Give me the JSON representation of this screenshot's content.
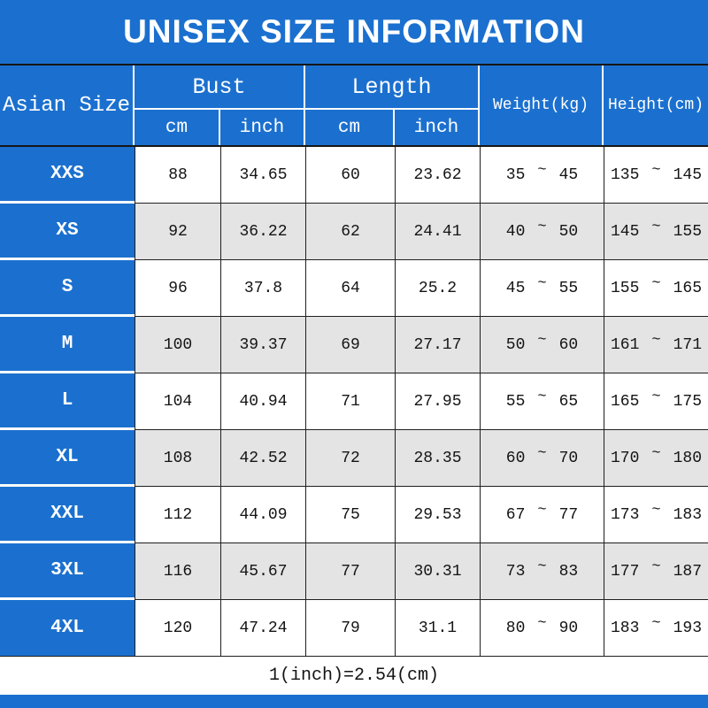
{
  "title": "UNISEX SIZE INFORMATION",
  "colors": {
    "blue": "#1b70cf",
    "stripe_gray": "#e4e4e4",
    "line": "#1f1f1f"
  },
  "table": {
    "headers": {
      "size": "Asian Size",
      "bust": "Bust",
      "length": "Length",
      "weight": "Weight(kg)",
      "height": "Height(cm)",
      "cm": "cm",
      "inch": "inch"
    },
    "tilde": "~",
    "rows": [
      {
        "size": "XXS",
        "bust_cm": "88",
        "bust_inch": "34.65",
        "length_cm": "60",
        "length_inch": "23.62",
        "weight_min": "35",
        "weight_max": "45",
        "height_min": "135",
        "height_max": "145"
      },
      {
        "size": "XS",
        "bust_cm": "92",
        "bust_inch": "36.22",
        "length_cm": "62",
        "length_inch": "24.41",
        "weight_min": "40",
        "weight_max": "50",
        "height_min": "145",
        "height_max": "155"
      },
      {
        "size": "S",
        "bust_cm": "96",
        "bust_inch": "37.8",
        "length_cm": "64",
        "length_inch": "25.2",
        "weight_min": "45",
        "weight_max": "55",
        "height_min": "155",
        "height_max": "165"
      },
      {
        "size": "M",
        "bust_cm": "100",
        "bust_inch": "39.37",
        "length_cm": "69",
        "length_inch": "27.17",
        "weight_min": "50",
        "weight_max": "60",
        "height_min": "161",
        "height_max": "171"
      },
      {
        "size": "L",
        "bust_cm": "104",
        "bust_inch": "40.94",
        "length_cm": "71",
        "length_inch": "27.95",
        "weight_min": "55",
        "weight_max": "65",
        "height_min": "165",
        "height_max": "175"
      },
      {
        "size": "XL",
        "bust_cm": "108",
        "bust_inch": "42.52",
        "length_cm": "72",
        "length_inch": "28.35",
        "weight_min": "60",
        "weight_max": "70",
        "height_min": "170",
        "height_max": "180"
      },
      {
        "size": "XXL",
        "bust_cm": "112",
        "bust_inch": "44.09",
        "length_cm": "75",
        "length_inch": "29.53",
        "weight_min": "67",
        "weight_max": "77",
        "height_min": "173",
        "height_max": "183"
      },
      {
        "size": "3XL",
        "bust_cm": "116",
        "bust_inch": "45.67",
        "length_cm": "77",
        "length_inch": "30.31",
        "weight_min": "73",
        "weight_max": "83",
        "height_min": "177",
        "height_max": "187"
      },
      {
        "size": "4XL",
        "bust_cm": "120",
        "bust_inch": "47.24",
        "length_cm": "79",
        "length_inch": "31.1",
        "weight_min": "80",
        "weight_max": "90",
        "height_min": "183",
        "height_max": "193"
      }
    ]
  },
  "footer": {
    "note": "1(inch)=2.54(cm)"
  },
  "chart_data": {
    "type": "table",
    "title": "UNISEX SIZE INFORMATION",
    "columns": [
      "Asian Size",
      "Bust (cm)",
      "Bust (inch)",
      "Length (cm)",
      "Length (inch)",
      "Weight (kg)",
      "Height (cm)"
    ],
    "rows": [
      [
        "XXS",
        88,
        34.65,
        60,
        23.62,
        "35~45",
        "135~145"
      ],
      [
        "XS",
        92,
        36.22,
        62,
        24.41,
        "40~50",
        "145~155"
      ],
      [
        "S",
        96,
        37.8,
        64,
        25.2,
        "45~55",
        "155~165"
      ],
      [
        "M",
        100,
        39.37,
        69,
        27.17,
        "50~60",
        "161~171"
      ],
      [
        "L",
        104,
        40.94,
        71,
        27.95,
        "55~65",
        "165~175"
      ],
      [
        "XL",
        108,
        42.52,
        72,
        28.35,
        "60~70",
        "170~180"
      ],
      [
        "XXL",
        112,
        44.09,
        75,
        29.53,
        "67~77",
        "173~183"
      ],
      [
        "3XL",
        116,
        45.67,
        77,
        30.31,
        "73~83",
        "177~187"
      ],
      [
        "4XL",
        120,
        47.24,
        79,
        31.1,
        "80~90",
        "183~193"
      ]
    ],
    "note": "1(inch)=2.54(cm)"
  }
}
